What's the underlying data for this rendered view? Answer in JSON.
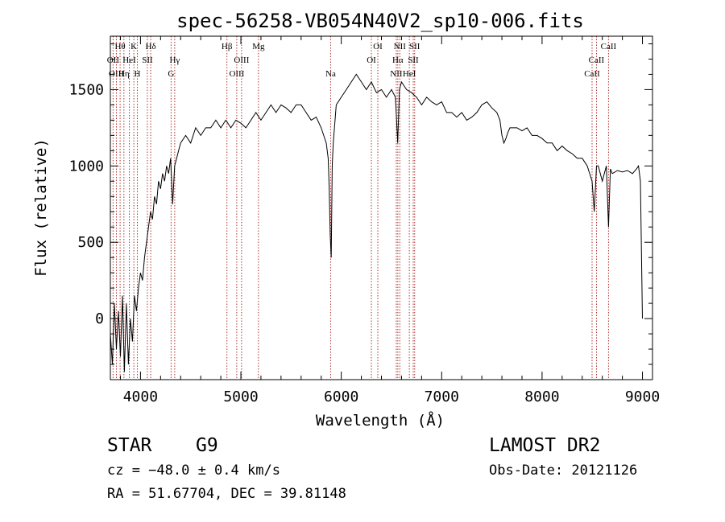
{
  "chart_data": {
    "type": "line",
    "title": "spec-56258-VB054N40V2_sp10-006.fits",
    "xlabel": "Wavelength (Å)",
    "ylabel": "Flux (relative)",
    "xlim": [
      3700,
      9100
    ],
    "ylim": [
      -400,
      1850
    ],
    "xticks": [
      4000,
      5000,
      6000,
      7000,
      8000,
      9000
    ],
    "yticks": [
      0,
      500,
      1000,
      1500
    ],
    "grid": false,
    "line_color": "#000000",
    "marker_color": "#b03030",
    "series": [
      {
        "x": [
          3700,
          3720,
          3740,
          3760,
          3780,
          3800,
          3820,
          3840,
          3860,
          3880,
          3900,
          3920,
          3940,
          3960,
          3980,
          4000,
          4020,
          4040,
          4060,
          4080,
          4100,
          4120,
          4140,
          4160,
          4180,
          4200,
          4220,
          4240,
          4260,
          4280,
          4300,
          4320,
          4340,
          4360,
          4380,
          4400,
          4450,
          4500,
          4550,
          4600,
          4650,
          4700,
          4750,
          4800,
          4850,
          4900,
          4950,
          5000,
          5050,
          5100,
          5150,
          5200,
          5250,
          5300,
          5350,
          5400,
          5450,
          5500,
          5550,
          5600,
          5650,
          5700,
          5750,
          5800,
          5850,
          5870,
          5880,
          5890,
          5900,
          5910,
          5920,
          5950,
          6000,
          6050,
          6100,
          6150,
          6200,
          6250,
          6300,
          6350,
          6400,
          6450,
          6500,
          6540,
          6562,
          6580,
          6600,
          6650,
          6700,
          6750,
          6800,
          6850,
          6900,
          6950,
          7000,
          7050,
          7100,
          7150,
          7200,
          7250,
          7300,
          7350,
          7400,
          7450,
          7500,
          7550,
          7580,
          7600,
          7620,
          7640,
          7660,
          7680,
          7700,
          7750,
          7800,
          7850,
          7900,
          7950,
          8000,
          8050,
          8100,
          8150,
          8200,
          8250,
          8300,
          8350,
          8400,
          8450,
          8498,
          8520,
          8542,
          8560,
          8600,
          8640,
          8662,
          8680,
          8700,
          8750,
          8800,
          8850,
          8900,
          8940,
          8960,
          8980,
          9000
        ],
        "y": [
          -100,
          -300,
          100,
          -200,
          50,
          -250,
          150,
          -350,
          100,
          -300,
          0,
          -150,
          150,
          50,
          200,
          300,
          250,
          400,
          500,
          600,
          700,
          650,
          800,
          750,
          900,
          850,
          950,
          900,
          1000,
          950,
          1050,
          750,
          1000,
          1050,
          1100,
          1150,
          1200,
          1150,
          1250,
          1200,
          1250,
          1250,
          1300,
          1250,
          1300,
          1250,
          1300,
          1280,
          1250,
          1300,
          1350,
          1300,
          1350,
          1400,
          1350,
          1400,
          1380,
          1350,
          1400,
          1400,
          1350,
          1300,
          1320,
          1250,
          1150,
          1050,
          850,
          550,
          400,
          1000,
          1150,
          1400,
          1450,
          1500,
          1550,
          1600,
          1550,
          1500,
          1550,
          1480,
          1500,
          1450,
          1500,
          1450,
          1150,
          1500,
          1550,
          1500,
          1480,
          1450,
          1400,
          1450,
          1420,
          1400,
          1420,
          1350,
          1350,
          1320,
          1350,
          1300,
          1320,
          1350,
          1400,
          1420,
          1380,
          1350,
          1300,
          1200,
          1150,
          1180,
          1220,
          1250,
          1250,
          1250,
          1230,
          1250,
          1200,
          1200,
          1180,
          1150,
          1150,
          1100,
          1130,
          1100,
          1080,
          1050,
          1050,
          1000,
          900,
          700,
          1000,
          1000,
          900,
          1000,
          600,
          980,
          950,
          970,
          960,
          970,
          950,
          980,
          1000,
          900,
          0
        ]
      }
    ],
    "lines": [
      {
        "name": "Hθ",
        "x": 3797,
        "row": 0
      },
      {
        "name": "OII",
        "x": 3727,
        "row": 1
      },
      {
        "name": "OIII",
        "x": 3760,
        "row": 2
      },
      {
        "name": "HeI",
        "x": 3889,
        "row": 1
      },
      {
        "name": "Hη",
        "x": 3835,
        "row": 2
      },
      {
        "name": "K",
        "x": 3934,
        "row": 0
      },
      {
        "name": "H",
        "x": 3969,
        "row": 2
      },
      {
        "name": "SII",
        "x": 4069,
        "row": 1
      },
      {
        "name": "Hδ",
        "x": 4102,
        "row": 0
      },
      {
        "name": "Hγ",
        "x": 4341,
        "row": 1
      },
      {
        "name": "G",
        "x": 4305,
        "row": 2
      },
      {
        "name": "Hβ",
        "x": 4861,
        "row": 0
      },
      {
        "name": "OIII",
        "x": 4959,
        "row": 2
      },
      {
        "name": "OIII",
        "x": 5007,
        "row": 1
      },
      {
        "name": "Mg",
        "x": 5175,
        "row": 0
      },
      {
        "name": "Na",
        "x": 5894,
        "row": 2
      },
      {
        "name": "OI",
        "x": 6300,
        "row": 1
      },
      {
        "name": "OI",
        "x": 6364,
        "row": 0
      },
      {
        "name": "NII",
        "x": 6548,
        "row": 2
      },
      {
        "name": "NII",
        "x": 6583,
        "row": 0
      },
      {
        "name": "Hα",
        "x": 6563,
        "row": 1
      },
      {
        "name": "SII",
        "x": 6717,
        "row": 1
      },
      {
        "name": "SII",
        "x": 6731,
        "row": 0
      },
      {
        "name": "HeI",
        "x": 6678,
        "row": 2
      },
      {
        "name": "CaII",
        "x": 8498,
        "row": 2
      },
      {
        "name": "CaII",
        "x": 8542,
        "row": 1
      },
      {
        "name": "CaII",
        "x": 8662,
        "row": 0
      }
    ]
  },
  "info": {
    "class_label": "STAR",
    "subclass": "G9",
    "survey": "LAMOST DR2",
    "cz_line": "cz = −48.0 ± 0.4 km/s",
    "obs_date_line": "Obs-Date: 20121126",
    "coords_line": "RA =  51.67704, DEC =  39.81148"
  }
}
